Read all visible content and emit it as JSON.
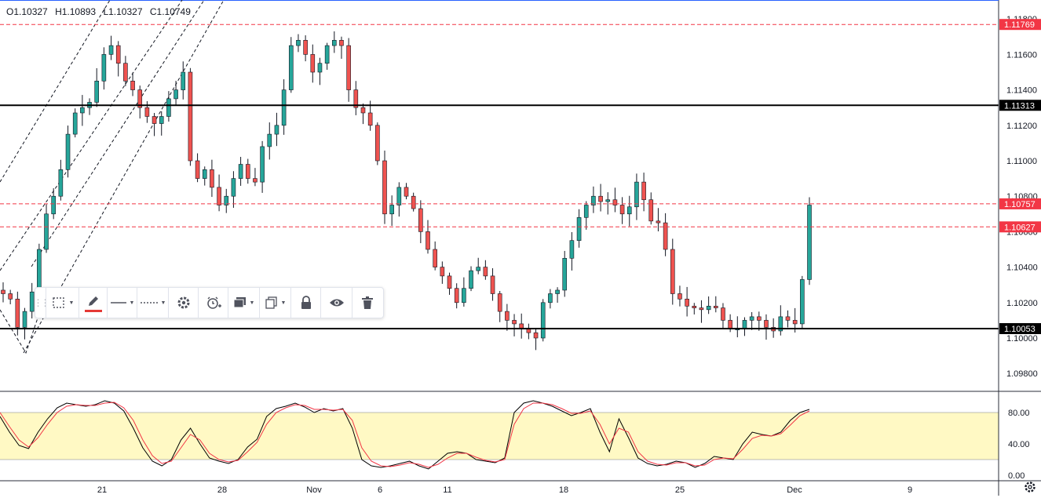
{
  "header": {
    "open": "O1.10327",
    "high": "H1.10893",
    "low": "L1.10327",
    "close": "C1.10749"
  },
  "toolbar": {
    "tools": [
      "select-area",
      "pencil",
      "line-style",
      "dash-style",
      "settings",
      "alert",
      "layers",
      "clone",
      "lock",
      "visibility",
      "delete"
    ],
    "accent": "#e53935"
  },
  "chart_data": [
    {
      "type": "candlestick",
      "symbol": "EURUSD",
      "ylim": [
        1.097,
        1.119
      ],
      "y_ticks": [
        "1.11800",
        "1.11600",
        "1.11400",
        "1.11200",
        "1.11000",
        "1.10800",
        "1.10600",
        "1.10400",
        "1.10200",
        "1.10000",
        "1.09800"
      ],
      "x_ticks": [
        "21",
        "28",
        "Nov",
        "6",
        "11",
        "18",
        "25",
        "Dec",
        "9"
      ],
      "price_labels": [
        {
          "value": "1.11769",
          "style": "dashed-red",
          "color": "#f23645"
        },
        {
          "value": "1.11313",
          "style": "solid-black",
          "color": "#000000"
        },
        {
          "value": "1.10757",
          "style": "dashed-red",
          "color": "#f23645"
        },
        {
          "value": "1.10627",
          "style": "dashed-red",
          "color": "#f23645"
        },
        {
          "value": "1.10053",
          "style": "solid-black",
          "color": "#000000"
        }
      ],
      "channel_lines": "dashed parallel upward channel (Oct 15 - Oct 29)",
      "close_path": [
        1.1025,
        1.1022,
        1.1006,
        1.1015,
        1.1026,
        1.105,
        1.107,
        1.108,
        1.1095,
        1.1115,
        1.1127,
        1.113,
        1.1133,
        1.1145,
        1.116,
        1.1165,
        1.1155,
        1.1145,
        1.114,
        1.113,
        1.1125,
        1.1121,
        1.1125,
        1.1135,
        1.114,
        1.115,
        1.11,
        1.109,
        1.1095,
        1.1085,
        1.1075,
        1.108,
        1.109,
        1.1098,
        1.109,
        1.1088,
        1.1108,
        1.1115,
        1.112,
        1.114,
        1.1165,
        1.1168,
        1.116,
        1.115,
        1.1155,
        1.1165,
        1.1168,
        1.1165,
        1.114,
        1.113,
        1.1127,
        1.112,
        1.11,
        1.107,
        1.1075,
        1.1085,
        1.108,
        1.1073,
        1.106,
        1.105,
        1.104,
        1.1035,
        1.1028,
        1.102,
        1.1028,
        1.1038,
        1.104,
        1.1035,
        1.1025,
        1.1015,
        1.101,
        1.1008,
        1.1005,
        1.1003,
        1.1,
        1.102,
        1.1025,
        1.1027,
        1.1045,
        1.1055,
        1.1068,
        1.1075,
        1.108,
        1.1077,
        1.1078,
        1.1075,
        1.107,
        1.1074,
        1.1088,
        1.1078,
        1.1066,
        1.1065,
        1.105,
        1.1025,
        1.1022,
        1.1018,
        1.1017,
        1.1016,
        1.1018,
        1.1017,
        1.101,
        1.1005,
        1.1005,
        1.101,
        1.1012,
        1.101,
        1.1006,
        1.1004,
        1.1012,
        1.101,
        1.1008,
        1.1033,
        1.1075
      ],
      "high": "1.10893",
      "low_of_period": "1.09800"
    },
    {
      "type": "line",
      "name": "stochastic",
      "ylim": [
        0,
        100
      ],
      "y_ticks": [
        "80.00",
        "40.00",
        "0.00"
      ],
      "band": [
        20,
        80
      ],
      "band_color": "#fff9c4",
      "series": [
        {
          "color": "#000000",
          "values": [
            75,
            55,
            38,
            34,
            55,
            72,
            86,
            92,
            90,
            88,
            90,
            95,
            92,
            82,
            60,
            35,
            18,
            12,
            20,
            45,
            60,
            40,
            22,
            18,
            15,
            20,
            36,
            46,
            75,
            85,
            88,
            92,
            87,
            80,
            85,
            82,
            85,
            60,
            20,
            12,
            10,
            12,
            15,
            18,
            12,
            8,
            18,
            28,
            30,
            28,
            20,
            18,
            16,
            22,
            80,
            92,
            95,
            92,
            88,
            82,
            76,
            80,
            85,
            55,
            30,
            72,
            48,
            22,
            15,
            12,
            14,
            18,
            16,
            10,
            15,
            24,
            22,
            20,
            40,
            55,
            52,
            50,
            55,
            70,
            80,
            84
          ]
        },
        {
          "color": "#f23645",
          "values": [
            80,
            62,
            45,
            36,
            48,
            65,
            80,
            88,
            90,
            89,
            89,
            92,
            93,
            86,
            70,
            45,
            25,
            15,
            18,
            35,
            52,
            45,
            28,
            20,
            17,
            19,
            30,
            42,
            65,
            80,
            86,
            90,
            89,
            84,
            84,
            83,
            84,
            70,
            35,
            18,
            12,
            11,
            13,
            16,
            14,
            10,
            14,
            22,
            28,
            28,
            23,
            19,
            17,
            20,
            65,
            85,
            92,
            92,
            90,
            85,
            79,
            79,
            82,
            65,
            40,
            60,
            55,
            30,
            18,
            14,
            13,
            16,
            16,
            12,
            13,
            20,
            22,
            21,
            33,
            47,
            51,
            50,
            53,
            64,
            76,
            82
          ]
        }
      ]
    }
  ]
}
